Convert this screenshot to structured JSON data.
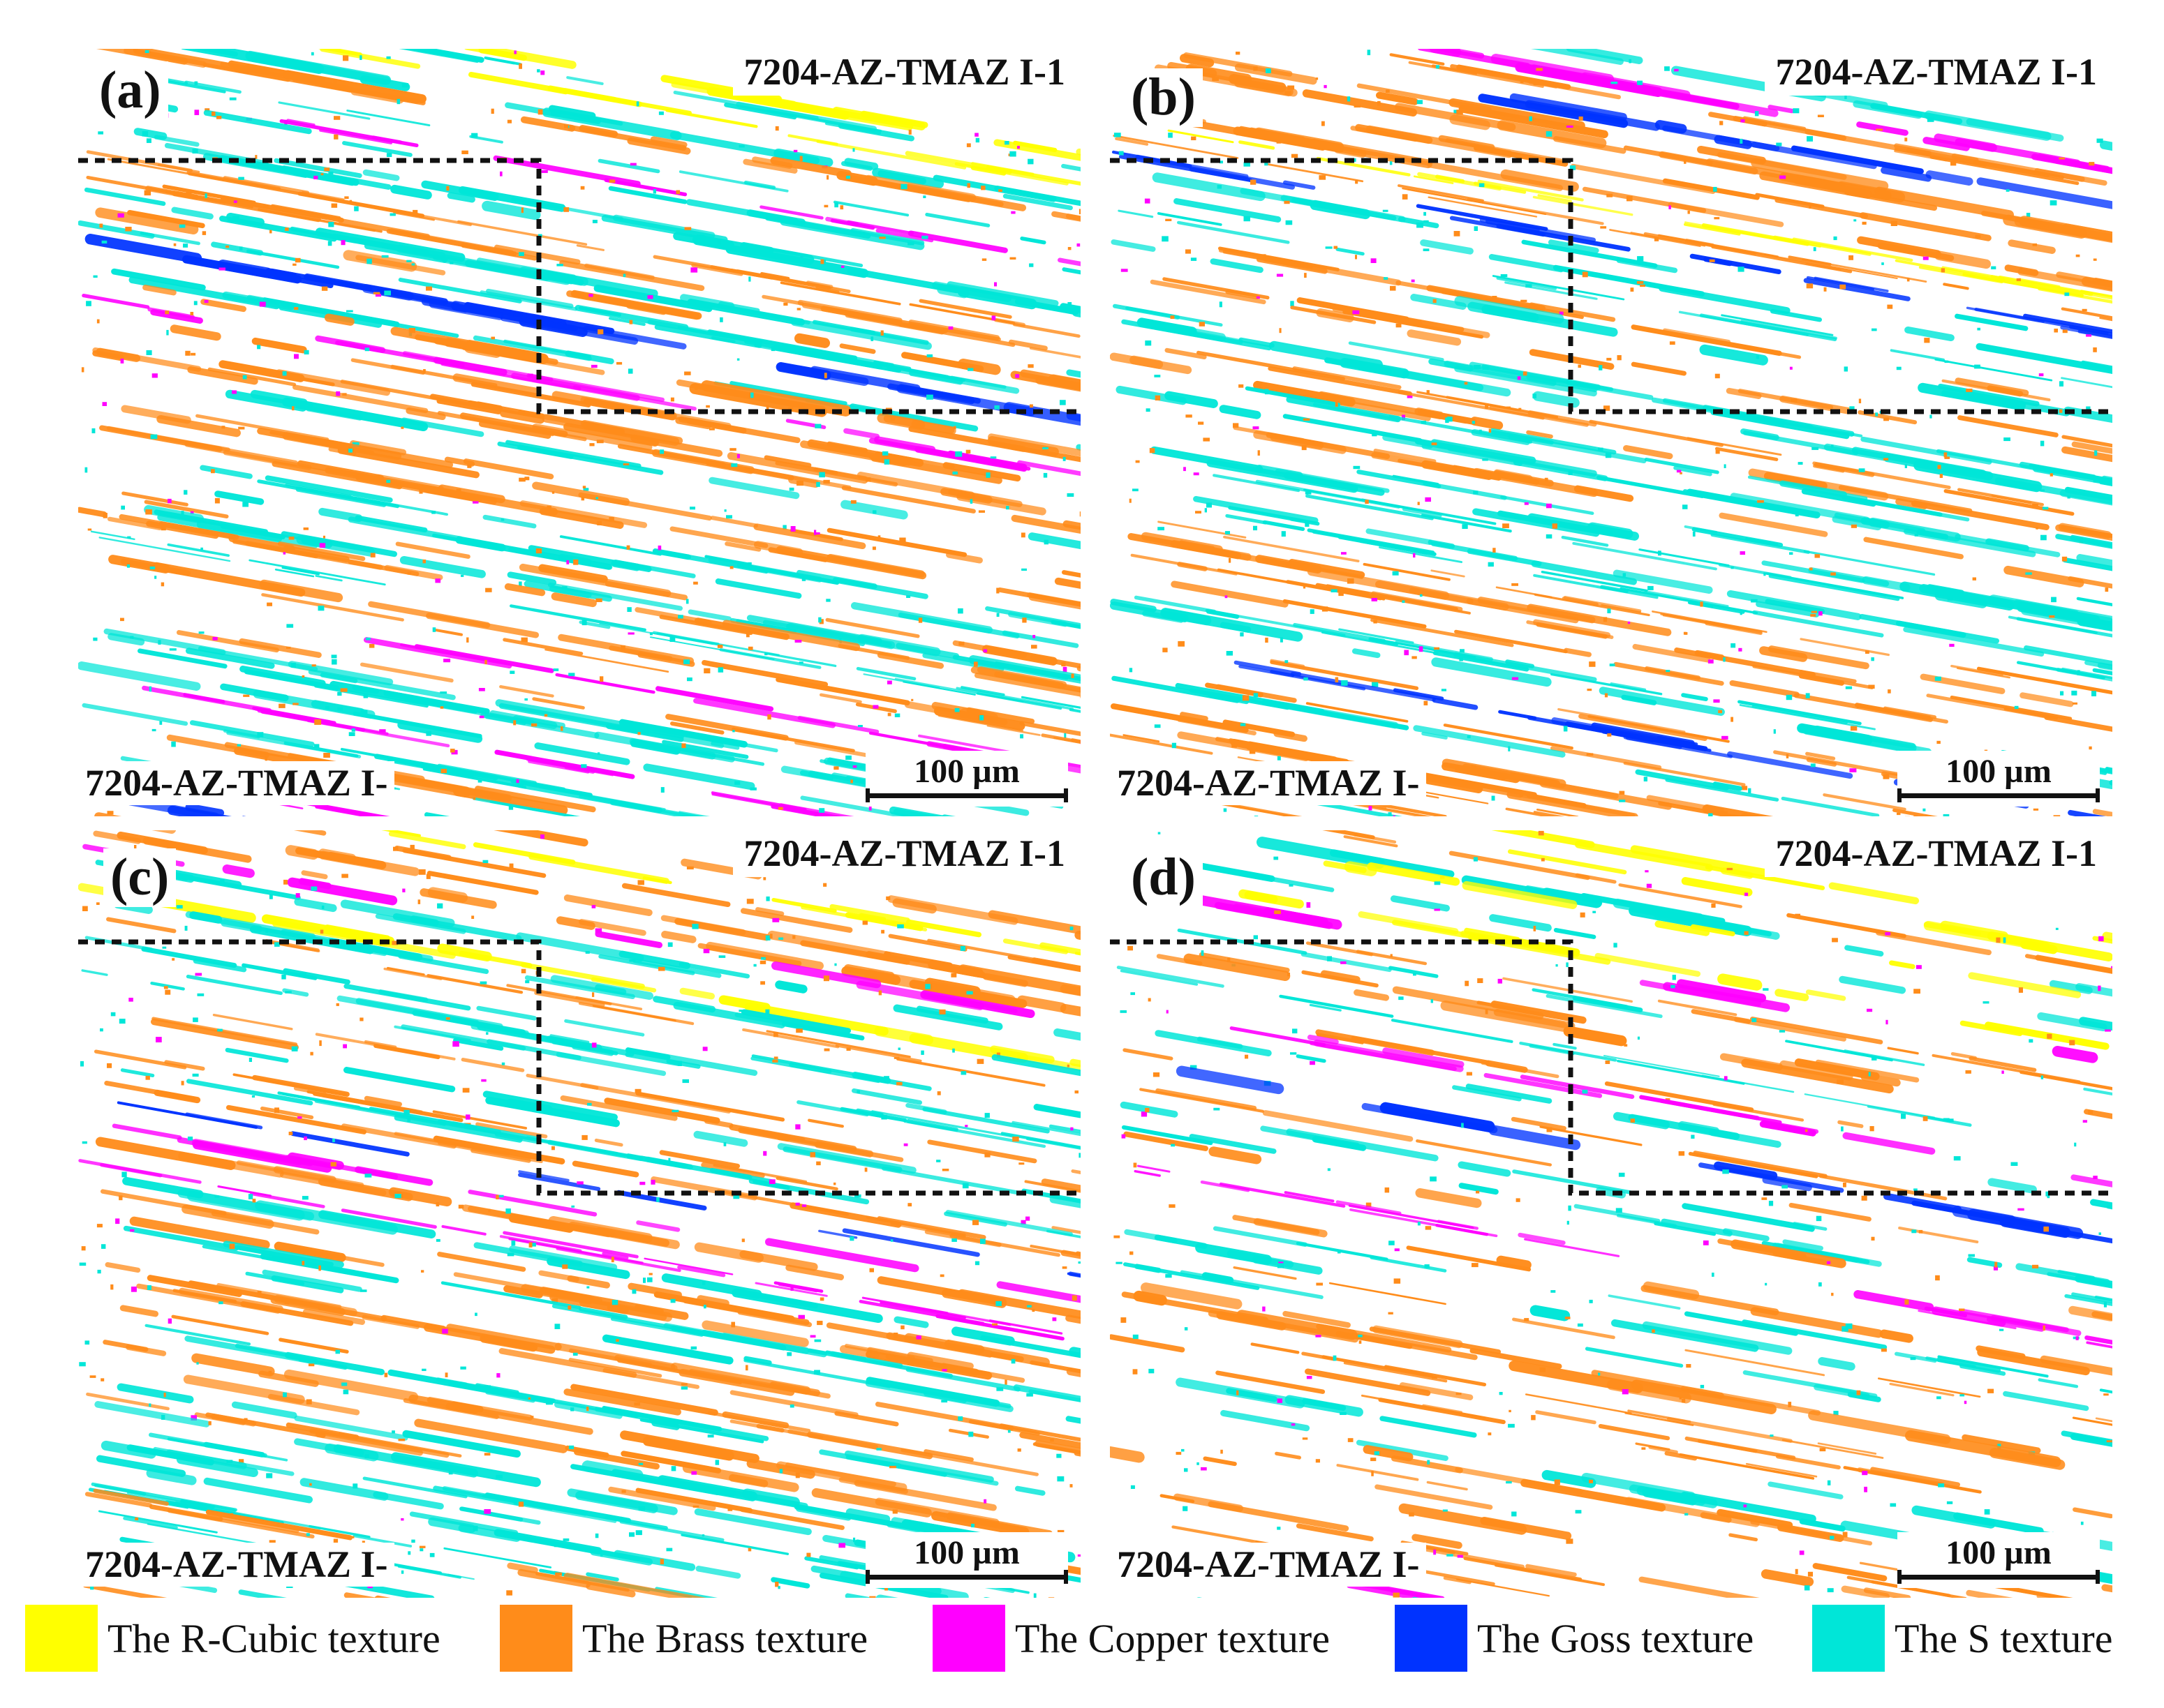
{
  "panels": [
    {
      "letter": "(a)",
      "top_label": "7204-AZ-TMAZ I-1",
      "bottom_label": "7204-AZ-TMAZ I-",
      "scale_bar": "100 µm",
      "density": 1.0
    },
    {
      "letter": "(b)",
      "top_label": "7204-AZ-TMAZ I-1",
      "bottom_label": "7204-AZ-TMAZ I-",
      "scale_bar": "100 µm",
      "density": 0.95
    },
    {
      "letter": "(c)",
      "top_label": "7204-AZ-TMAZ I-1",
      "bottom_label": "7204-AZ-TMAZ I-",
      "scale_bar": "100 µm",
      "density": 0.85
    },
    {
      "letter": "(d)",
      "top_label": "7204-AZ-TMAZ I-1",
      "bottom_label": "7204-AZ-TMAZ I-",
      "scale_bar": "100 µm",
      "density": 0.55
    }
  ],
  "legend": [
    {
      "label": "The R-Cubic texture",
      "color": "#ffff00"
    },
    {
      "label": "The Brass texture",
      "color": "#ff8c1a"
    },
    {
      "label": "The Copper texture",
      "color": "#ff00ff"
    },
    {
      "label": "The Goss texture",
      "color": "#0033ff"
    },
    {
      "label": "The S texture",
      "color": "#00e6d8"
    }
  ]
}
